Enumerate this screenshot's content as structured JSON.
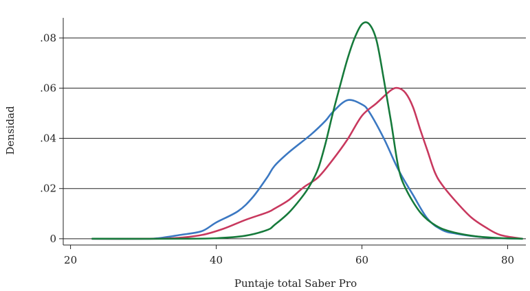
{
  "chart_data": {
    "type": "line",
    "title": "",
    "xlabel": "Puntaje total Saber Pro",
    "ylabel": "Densidad",
    "xlim": [
      19,
      82.5
    ],
    "ylim": [
      -0.0025,
      0.088
    ],
    "xticks": [
      20,
      40,
      60,
      80
    ],
    "xtick_labels": [
      "20",
      "40",
      "60",
      "80"
    ],
    "yticks": [
      0,
      0.02,
      0.04,
      0.06,
      0.08
    ],
    "ytick_labels": [
      "0",
      ".02",
      ".04",
      ".06",
      ".08"
    ],
    "grid": "horizontal",
    "legend": "none",
    "series": [
      {
        "color": "#3b78c2",
        "x": [
          23,
          30,
          32,
          35,
          38,
          40,
          43,
          45,
          47,
          48,
          50,
          53,
          55,
          56,
          58,
          60,
          61,
          63,
          65,
          67,
          69,
          71,
          73,
          76,
          79,
          82
        ],
        "y": [
          0,
          0,
          0.0002,
          0.0015,
          0.003,
          0.0065,
          0.011,
          0.0165,
          0.0245,
          0.029,
          0.0345,
          0.0415,
          0.047,
          0.0505,
          0.0552,
          0.0535,
          0.0505,
          0.04,
          0.0275,
          0.0175,
          0.008,
          0.0035,
          0.002,
          0.0008,
          0.0002,
          0
        ]
      },
      {
        "color": "#c8385e",
        "x": [
          23,
          30,
          34,
          38,
          41,
          44,
          47,
          48,
          50,
          52,
          54,
          56,
          58,
          60,
          62,
          64,
          65,
          66,
          67,
          68,
          69,
          70,
          71,
          73,
          75,
          77,
          79,
          82
        ],
        "y": [
          0,
          0,
          0.0002,
          0.0015,
          0.004,
          0.0075,
          0.0105,
          0.012,
          0.0155,
          0.0205,
          0.0245,
          0.0315,
          0.0395,
          0.049,
          0.054,
          0.0592,
          0.06,
          0.058,
          0.0525,
          0.0435,
          0.035,
          0.0265,
          0.0215,
          0.0145,
          0.0085,
          0.0045,
          0.0015,
          0
        ]
      },
      {
        "color": "#167a3b",
        "x": [
          23,
          35,
          40,
          44,
          47,
          48,
          50,
          52,
          53,
          54,
          55,
          56,
          57,
          58,
          59,
          60,
          61,
          62,
          63,
          64,
          65,
          66,
          68,
          70,
          72,
          75,
          78,
          82
        ],
        "y": [
          0,
          0,
          0.0002,
          0.0012,
          0.0035,
          0.0055,
          0.0105,
          0.0175,
          0.022,
          0.028,
          0.038,
          0.05,
          0.061,
          0.0715,
          0.08,
          0.0855,
          0.0855,
          0.079,
          0.0635,
          0.0465,
          0.0285,
          0.02,
          0.0105,
          0.0055,
          0.003,
          0.0012,
          0.0004,
          0
        ]
      }
    ]
  }
}
